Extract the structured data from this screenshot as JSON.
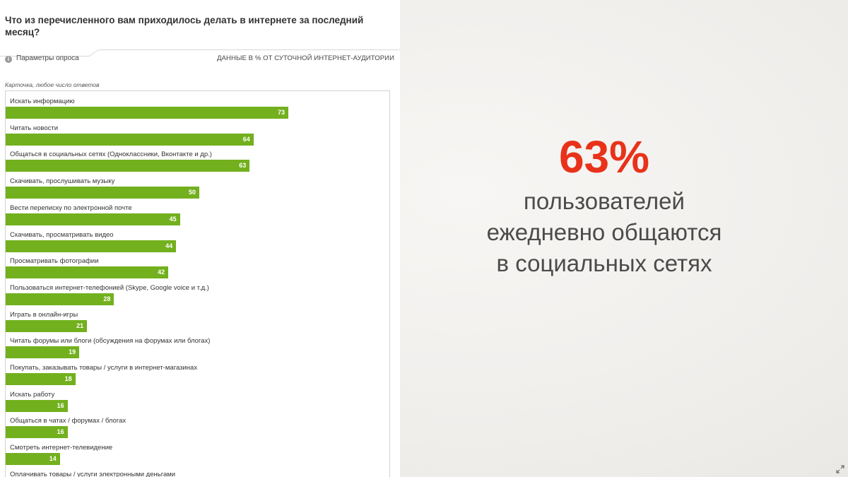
{
  "panel": {
    "question": "Что из перечисленного вам приходилось делать в интернете за последний месяц?",
    "params_label": "Параметры опроса",
    "info_icon": "info-icon",
    "units_label": "ДАННЫЕ В % ОТ СУТОЧНОЙ ИНТЕРНЕТ-АУДИТОРИИ",
    "card_note": "Карточка, любое число ответов"
  },
  "chart_data": {
    "type": "bar",
    "orientation": "horizontal",
    "title": "Что из перечисленного вам приходилось делать в интернете за последний месяц?",
    "bar_color": "#72b01d",
    "xlim": [
      0,
      100
    ],
    "categories": [
      "Искать информацию",
      "Читать новости",
      "Общаться в социальных сетях (Одноклассники, Вконтакте и др.)",
      "Скачивать, прослушивать музыку",
      "Вести переписку по электронной почте",
      "Скачивать, просматривать видео",
      "Просматривать фотографии",
      "Пользоваться интернет-телефонией (Skype, Google voice и т.д.)",
      "Играть в онлайн-игры",
      "Читать форумы или блоги (обсуждения на форумах или блогах)",
      "Покупать, заказывать товары / услуги в интернет-магазинах",
      "Искать работу",
      "Общаться в чатах / форумах / блогах",
      "Смотреть интернет-телевидение",
      "Оплачивать товары / услуги электронными деньгами"
    ],
    "values": [
      73,
      64,
      63,
      50,
      45,
      44,
      42,
      28,
      21,
      19,
      18,
      16,
      16,
      14,
      null
    ],
    "labels": [
      "73",
      "64",
      "63",
      "50",
      "45",
      "44",
      "42",
      "28",
      "21",
      "19",
      "18",
      "16",
      "16",
      "14",
      ""
    ]
  },
  "highlight": {
    "number": "63%",
    "number_color": "#e8321a",
    "lines": [
      "пользователей",
      "ежедневно общаются",
      "в социальных сетях"
    ]
  },
  "corner_icon": "expand-icon"
}
